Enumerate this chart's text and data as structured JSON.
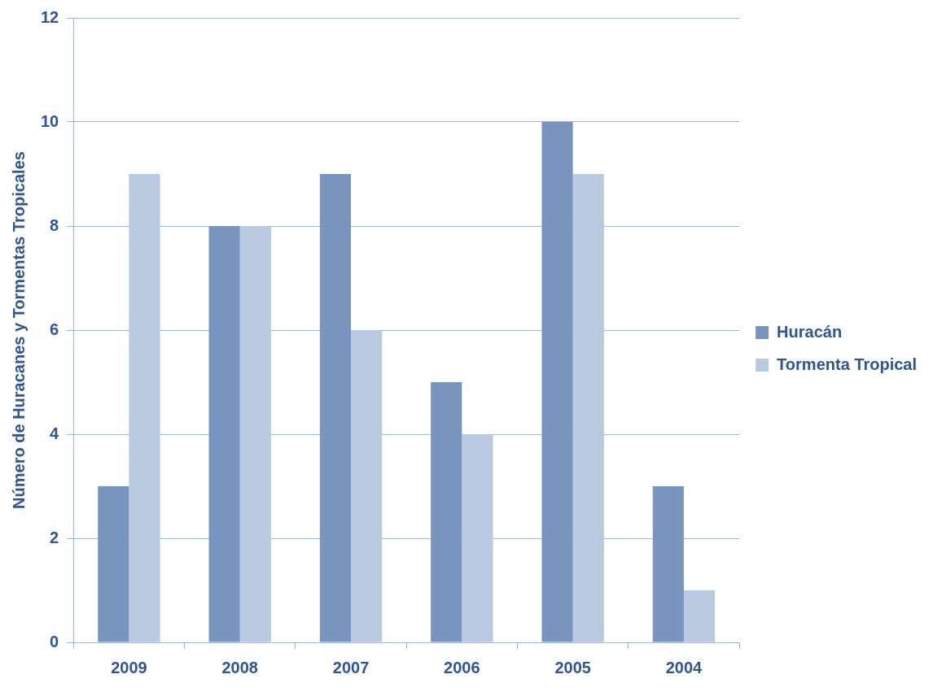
{
  "chart_data": {
    "type": "bar",
    "ylabel": "Número de Huracanes y Tormentas Tropicales",
    "categories": [
      "2009",
      "2008",
      "2007",
      "2006",
      "2005",
      "2004"
    ],
    "series": [
      {
        "name": "Huracán",
        "color": "#7896bd",
        "values": [
          3,
          8,
          9,
          5,
          10,
          3
        ]
      },
      {
        "name": "Tormenta Tropical",
        "color": "#b9c9df",
        "values": [
          9,
          8,
          6,
          4,
          9,
          1
        ]
      }
    ],
    "ylim": [
      0,
      12
    ],
    "yticks": [
      0,
      2,
      4,
      6,
      8,
      10,
      12
    ],
    "grid": "y",
    "legend": "right"
  }
}
